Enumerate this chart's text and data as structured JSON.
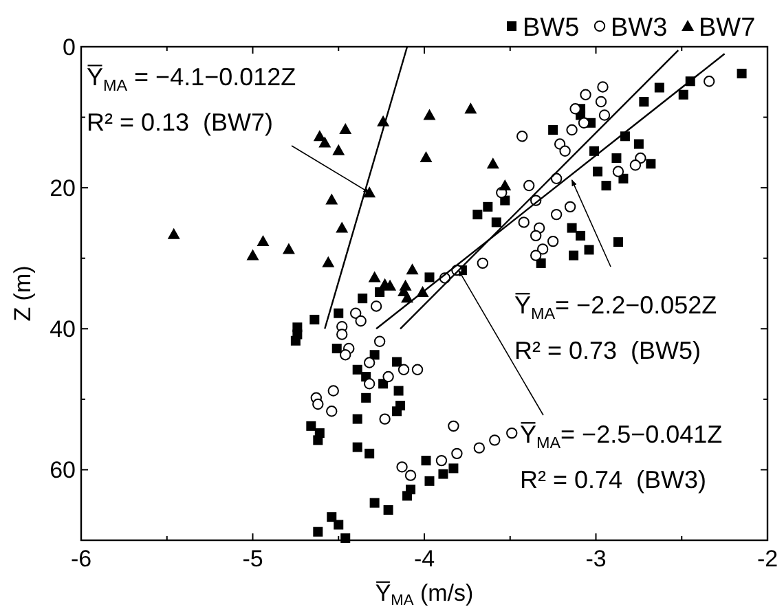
{
  "chart_data": {
    "type": "scatter",
    "xlabel": "Y̅$_{MA}$ (m/s)",
    "ylabel": "Z (m)",
    "xlim": [
      -6,
      -2
    ],
    "xticks": [
      -6,
      {
        "value": -5.5,
        "label": null
      },
      -5,
      {
        "value": -4.5,
        "label": null
      },
      -4,
      {
        "value": -3.5,
        "label": null
      },
      -3,
      {
        "value": -2.5,
        "label": null
      },
      -2
    ],
    "ylim": [
      70,
      0
    ],
    "yticks": [
      0,
      {
        "value": 10,
        "label": null
      },
      20,
      {
        "value": 30,
        "label": null
      },
      40,
      {
        "value": 50,
        "label": null
      },
      60
    ],
    "grid": false,
    "legend": "top right",
    "series": [
      {
        "name": "BW5",
        "marker": "square",
        "color": "#000000",
        "x": [
          -2.15,
          -2.45,
          -2.49,
          -2.63,
          -2.72,
          -3.09,
          -3.09,
          -3.03,
          -3.25,
          -2.83,
          -2.75,
          -3.01,
          -2.88,
          -2.68,
          -2.99,
          -2.84,
          -2.94,
          -3.53,
          -3.63,
          -3.69,
          -3.58,
          -3.14,
          -3.09,
          -2.87,
          -3.04,
          -3.13,
          -3.32,
          -3.78,
          -3.97,
          -4.26,
          -4.36,
          -4.5,
          -4.64,
          -4.74,
          -4.74,
          -4.75,
          -4.51,
          -4.29,
          -4.16,
          -4.39,
          -4.34,
          -4.24,
          -4.15,
          -4.34,
          -4.14,
          -4.16,
          -4.39,
          -4.66,
          -4.61,
          -4.62,
          -4.39,
          -4.32,
          -3.99,
          -3.89,
          -3.83,
          -3.97,
          -4.08,
          -4.1,
          -4.29,
          -4.21,
          -4.54,
          -4.5,
          -4.62,
          -4.46
        ],
        "values": [
          3.8,
          4.9,
          6.8,
          5.8,
          7.8,
          8.8,
          9.7,
          10.8,
          11.8,
          12.7,
          13.8,
          14.8,
          15.8,
          16.6,
          17.7,
          18.7,
          19.7,
          21.8,
          22.7,
          23.8,
          24.9,
          25.7,
          26.8,
          27.7,
          28.8,
          29.6,
          30.7,
          31.7,
          32.7,
          34.8,
          35.7,
          37.8,
          38.7,
          39.8,
          40.8,
          41.7,
          42.8,
          43.7,
          44.7,
          45.8,
          46.8,
          47.8,
          48.8,
          49.8,
          50.9,
          51.7,
          52.8,
          53.8,
          54.8,
          55.8,
          56.8,
          57.7,
          58.7,
          60.6,
          59.8,
          61.6,
          62.8,
          63.7,
          64.7,
          65.7,
          66.7,
          67.8,
          68.8,
          69.7
        ]
      },
      {
        "name": "BW3",
        "marker": "circle",
        "color": "#000000",
        "x": [
          -2.34,
          -2.96,
          -3.06,
          -2.97,
          -3.12,
          -2.95,
          -3.07,
          -3.14,
          -3.43,
          -3.21,
          -3.18,
          -2.74,
          -2.77,
          -2.87,
          -3.23,
          -3.39,
          -3.55,
          -3.35,
          -3.15,
          -3.23,
          -3.42,
          -3.33,
          -3.35,
          -3.25,
          -3.31,
          -3.35,
          -3.66,
          -3.81,
          -3.88,
          -4.28,
          -4.4,
          -4.37,
          -4.48,
          -4.48,
          -4.26,
          -4.44,
          -4.46,
          -4.32,
          -4.12,
          -4.04,
          -4.21,
          -4.32,
          -4.53,
          -4.63,
          -4.62,
          -4.54,
          -4.23,
          -3.83,
          -3.49,
          -3.59,
          -3.68,
          -3.81,
          -3.9,
          -4.13,
          -4.08
        ],
        "values": [
          4.9,
          5.7,
          6.8,
          7.8,
          8.8,
          9.7,
          10.8,
          11.8,
          12.7,
          13.8,
          14.8,
          15.8,
          16.8,
          17.7,
          18.7,
          19.7,
          20.7,
          21.8,
          22.7,
          23.8,
          24.9,
          25.7,
          26.8,
          27.6,
          28.7,
          29.6,
          30.7,
          31.7,
          32.8,
          36.8,
          37.8,
          38.9,
          39.7,
          40.8,
          41.8,
          42.8,
          43.7,
          44.8,
          45.8,
          45.8,
          46.8,
          47.8,
          48.8,
          49.8,
          50.7,
          51.7,
          52.8,
          53.8,
          54.8,
          55.8,
          56.9,
          57.7,
          58.7,
          59.6,
          60.8
        ]
      },
      {
        "name": "BW7",
        "marker": "triangle",
        "color": "#000000",
        "x": [
          -4.24,
          -4.46,
          -4.61,
          -4.58,
          -4.5,
          -4.32,
          -4.54,
          -4.48,
          -5.46,
          -4.94,
          -5.0,
          -4.79,
          -4.56,
          -4.29,
          -4.23,
          -4.2,
          -4.12,
          -4.1,
          -4.01,
          -3.97,
          -3.73,
          -3.99,
          -3.6,
          -3.53,
          -4.07,
          -4.11
        ],
        "values": [
          10.6,
          11.7,
          12.7,
          13.6,
          14.7,
          20.7,
          21.7,
          25.7,
          26.6,
          27.6,
          29.6,
          28.7,
          30.6,
          32.7,
          33.7,
          33.9,
          34.7,
          35.6,
          34.8,
          9.7,
          8.8,
          15.7,
          16.6,
          19.7,
          31.6,
          33.9
        ]
      },
      {
        "type": "line",
        "marker": "none",
        "line_style": "solid",
        "color": "#000000",
        "x": [
          -4.1,
          -4.58
        ],
        "values": [
          0,
          40
        ]
      },
      {
        "type": "line",
        "marker": "none",
        "line_style": "solid",
        "color": "#000000",
        "x": [
          -2.25,
          -4.28
        ],
        "values": [
          1,
          40
        ]
      },
      {
        "type": "line",
        "marker": "none",
        "line_style": "solid",
        "color": "#000000",
        "x": [
          -2.52,
          -4.14
        ],
        "values": [
          0.5,
          40
        ]
      }
    ],
    "annotations": [
      {
        "text": "Y̅$_{MA}$ = −4.1−0.012Z\nR² = 0.13  (BW7)",
        "x": -4.32,
        "y": 20.7
      },
      {
        "text": "Y̅$_{MA}$= −2.2−0.052Z\nR² = 0.73  (BW5)",
        "x": -3.14,
        "y": 18.9
      },
      {
        "text": "Y̅$_{MA}$= −2.5−0.041Z\nR² = 0.74  (BW3)",
        "x": -3.8,
        "y": 31.7
      }
    ]
  }
}
